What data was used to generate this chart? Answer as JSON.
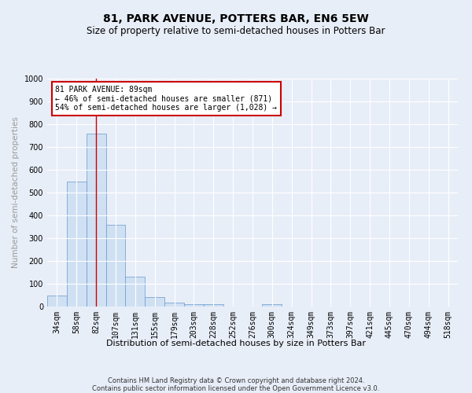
{
  "title": "81, PARK AVENUE, POTTERS BAR, EN6 5EW",
  "subtitle": "Size of property relative to semi-detached houses in Potters Bar",
  "xlabel": "Distribution of semi-detached houses by size in Potters Bar",
  "ylabel": "Number of semi-detached properties",
  "bin_labels": [
    "34sqm",
    "58sqm",
    "82sqm",
    "107sqm",
    "131sqm",
    "155sqm",
    "179sqm",
    "203sqm",
    "228sqm",
    "252sqm",
    "276sqm",
    "300sqm",
    "324sqm",
    "349sqm",
    "373sqm",
    "397sqm",
    "421sqm",
    "445sqm",
    "470sqm",
    "494sqm",
    "518sqm"
  ],
  "bar_values": [
    50,
    550,
    760,
    360,
    130,
    40,
    18,
    12,
    10,
    0,
    0,
    10,
    0,
    0,
    0,
    0,
    0,
    0,
    0,
    0,
    0
  ],
  "bar_color": "#cfe0f3",
  "bar_edge_color": "#6699cc",
  "ylim": [
    0,
    1000
  ],
  "yticks": [
    0,
    100,
    200,
    300,
    400,
    500,
    600,
    700,
    800,
    900,
    1000
  ],
  "vline_x": 2,
  "annotation_title": "81 PARK AVENUE: 89sqm",
  "annotation_line1": "← 46% of semi-detached houses are smaller (871)",
  "annotation_line2": "54% of semi-detached houses are larger (1,028) →",
  "footer_line1": "Contains HM Land Registry data © Crown copyright and database right 2024.",
  "footer_line2": "Contains public sector information licensed under the Open Government Licence v3.0.",
  "background_color": "#e8eef8",
  "plot_bg_color": "#e8eef8",
  "grid_color": "#ffffff",
  "title_fontsize": 10,
  "subtitle_fontsize": 8.5,
  "ylabel_fontsize": 7.5,
  "xlabel_fontsize": 8,
  "tick_fontsize": 7,
  "annotation_fontsize": 7,
  "footer_fontsize": 6
}
